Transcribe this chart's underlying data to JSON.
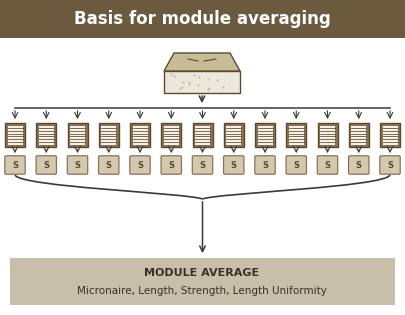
{
  "title": "Basis for module averaging",
  "title_bg_color": "#6b5a3e",
  "title_text_color": "#ffffff",
  "bg_color": "#ffffff",
  "num_samples": 13,
  "bale_color": "#8b7355",
  "bale_inner_color": "#f5f0e8",
  "bale_line_color": "#5c4a2a",
  "sample_color": "#d4c9b0",
  "sample_border_color": "#8b7355",
  "sample_text": "S",
  "sample_text_color": "#5c4a2a",
  "arrow_color": "#3a3a3a",
  "module_avg_bg": "#c8bfaa",
  "module_avg_text1": "MODULE AVERAGE",
  "module_avg_text2": "Micronaire, Length, Strength, Length Uniformity",
  "module_avg_text_color": "#3c3020",
  "cotton_bale_top_color": "#c8bc96",
  "cotton_bale_front_color": "#ede8dc",
  "cotton_bale_border": "#5c4a2a",
  "title_fontsize": 12,
  "module_text1_fontsize": 8,
  "module_text2_fontsize": 7.5
}
